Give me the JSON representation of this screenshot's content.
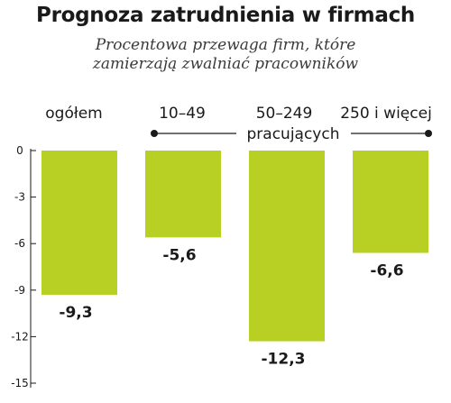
{
  "chart_data": {
    "type": "bar",
    "title": "Prognoza zatrudnienia w firmach",
    "subtitle": [
      "Procentowa przewaga firm, które",
      "zamierzają zwalniać pracowników"
    ],
    "categories": [
      "ogółem",
      "10–49",
      "50–249",
      "250 i więcej"
    ],
    "group_label": "pracujących",
    "values": [
      -9.3,
      -5.6,
      -12.3,
      -6.6
    ],
    "value_labels": [
      "-9,3",
      "-5,6",
      "-12,3",
      "-6,6"
    ],
    "ylim": [
      -15,
      0
    ],
    "yticks": [
      0,
      -3,
      -6,
      -9,
      -12,
      -15
    ],
    "grid": false,
    "colors": {
      "bar": "#b8cf24",
      "text": "#1a1a1a",
      "axis": "#1a1a1a"
    }
  }
}
